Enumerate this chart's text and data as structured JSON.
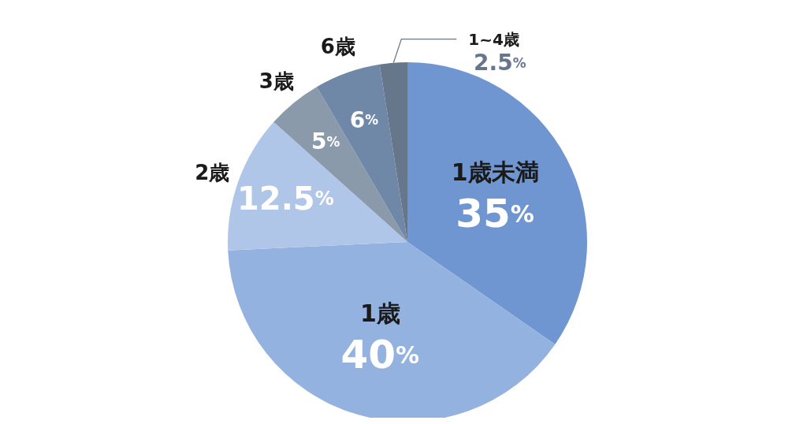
{
  "chart_data": {
    "type": "pie",
    "categories": [
      "1歳未満",
      "1歳",
      "2歳",
      "3歳",
      "6歳",
      "1~4歳"
    ],
    "values": [
      35,
      40,
      12.5,
      5,
      6,
      2.5
    ],
    "colors": [
      "#6f96d1",
      "#93b2e0",
      "#b0c6e8",
      "#8a9aab",
      "#6f88a8",
      "#66778c"
    ],
    "value_labels": [
      "35%",
      "40%",
      "12.5%",
      "5%",
      "6%",
      "2.5%"
    ],
    "legend": false
  }
}
